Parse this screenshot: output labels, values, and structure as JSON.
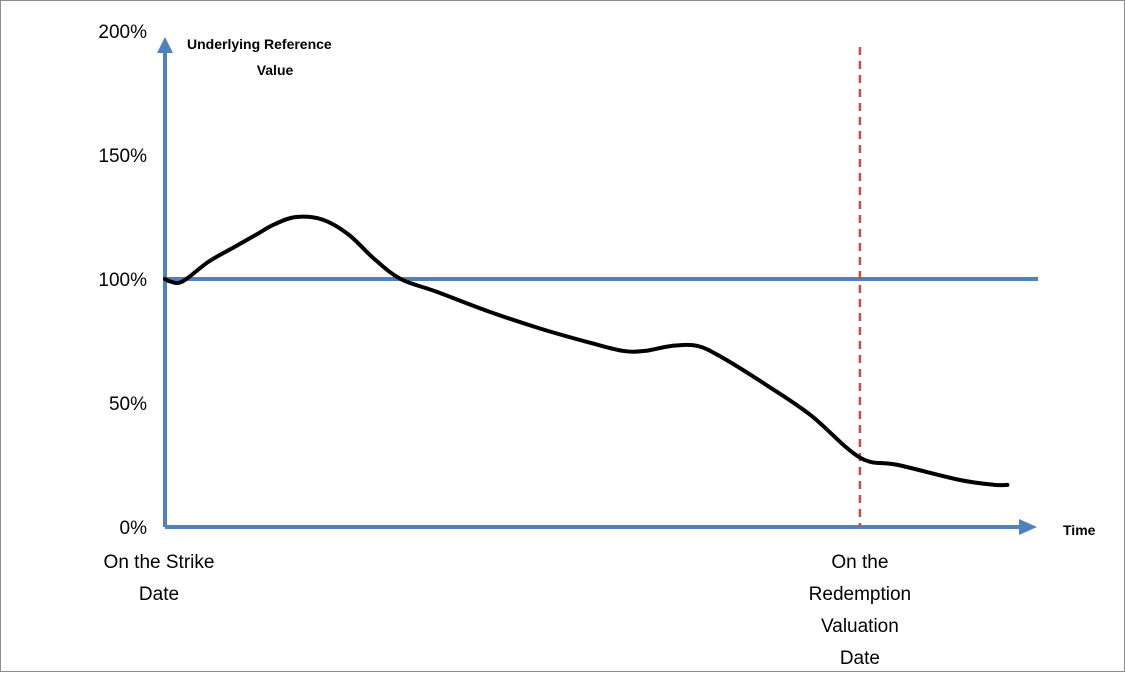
{
  "chart_data": {
    "type": "line",
    "ylabel": "Underlying Reference Value",
    "xlabel": "Time",
    "y_ticks": [
      "0%",
      "50%",
      "100%",
      "150%",
      "200%"
    ],
    "ylim": [
      0,
      200
    ],
    "xlim": [
      0,
      100
    ],
    "x_annotations": [
      {
        "label": "On the Strike Date",
        "lines": [
          "On the Strike",
          "Date"
        ],
        "x": 0
      },
      {
        "label": "On the Redemption Valuation Date",
        "lines": [
          "On the",
          "Redemption",
          "Valuation",
          "Date"
        ],
        "x": 79.6
      }
    ],
    "series": [
      {
        "values_description": "",
        "points": [
          [
            0,
            100
          ],
          [
            0.6,
            99
          ],
          [
            2,
            99
          ],
          [
            5,
            107
          ],
          [
            8,
            113
          ],
          [
            10.5,
            118
          ],
          [
            12.5,
            122
          ],
          [
            15,
            125
          ],
          [
            18,
            124
          ],
          [
            21,
            118
          ],
          [
            24,
            108
          ],
          [
            27,
            100
          ],
          [
            31,
            95
          ],
          [
            37,
            87
          ],
          [
            43,
            80
          ],
          [
            49,
            74
          ],
          [
            52.5,
            71
          ],
          [
            55,
            71
          ],
          [
            58,
            73
          ],
          [
            61,
            73
          ],
          [
            64,
            68
          ],
          [
            69,
            57
          ],
          [
            74,
            45
          ],
          [
            79.6,
            28
          ],
          [
            84,
            25
          ],
          [
            91,
            19
          ],
          [
            95,
            17
          ],
          [
            96.5,
            17
          ]
        ],
        "color": "#000000"
      }
    ],
    "reference_lines": [
      {
        "type": "horizontal",
        "y": 100,
        "color": "#4f81bd"
      },
      {
        "type": "vertical",
        "x": 79.6,
        "color": "#c0504d",
        "dash": true
      }
    ],
    "colors": {
      "axis": "#4f81bd",
      "series": "#000000",
      "reference": "#4f81bd",
      "valuation": "#c0504d"
    }
  }
}
